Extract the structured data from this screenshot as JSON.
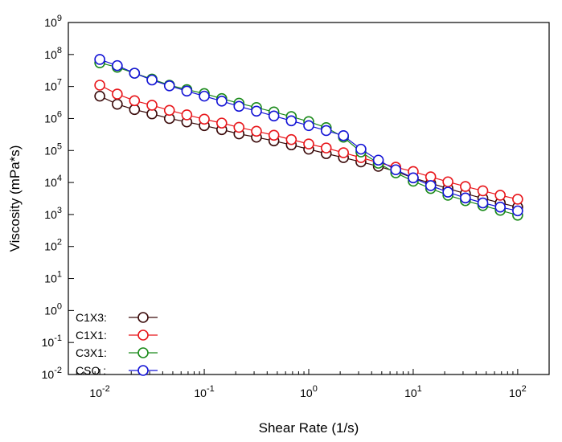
{
  "chart_data": {
    "type": "line",
    "xscale": "log",
    "yscale": "log",
    "xlabel": "Shear Rate (1/s)",
    "ylabel": "Viscosity (mPa*s)",
    "xlim": [
      0.005,
      200
    ],
    "ylim": [
      0.01,
      1000000000
    ],
    "x_ticks": [
      {
        "value": 0.01,
        "base": "10",
        "exp": "-2"
      },
      {
        "value": 0.1,
        "base": "10",
        "exp": "-1"
      },
      {
        "value": 1,
        "base": "10",
        "exp": "0"
      },
      {
        "value": 10,
        "base": "10",
        "exp": "1"
      },
      {
        "value": 100,
        "base": "10",
        "exp": "2"
      }
    ],
    "y_ticks": [
      {
        "value": 0.01,
        "base": "10",
        "exp": "-2"
      },
      {
        "value": 0.1,
        "base": "10",
        "exp": "-1"
      },
      {
        "value": 1,
        "base": "10",
        "exp": "0"
      },
      {
        "value": 10,
        "base": "10",
        "exp": "1"
      },
      {
        "value": 100,
        "base": "10",
        "exp": "2"
      },
      {
        "value": 1000,
        "base": "10",
        "exp": "3"
      },
      {
        "value": 10000,
        "base": "10",
        "exp": "4"
      },
      {
        "value": 100000,
        "base": "10",
        "exp": "5"
      },
      {
        "value": 1000000,
        "base": "10",
        "exp": "6"
      },
      {
        "value": 10000000,
        "base": "10",
        "exp": "7"
      },
      {
        "value": 100000000,
        "base": "10",
        "exp": "8"
      },
      {
        "value": 1000000000,
        "base": "10",
        "exp": "9"
      }
    ],
    "legend_position": "bottom-left",
    "x": [
      0.01,
      0.0147,
      0.0215,
      0.0316,
      0.0464,
      0.0681,
      0.1,
      0.147,
      0.215,
      0.316,
      0.464,
      0.681,
      1,
      1.47,
      2.15,
      3.16,
      4.64,
      6.81,
      10,
      14.7,
      21.5,
      31.6,
      46.4,
      68.1,
      100
    ],
    "series": [
      {
        "name": "C1X3:",
        "color": "#3a0a0a",
        "values": [
          5000000,
          2800000,
          1900000,
          1400000,
          1000000,
          780000,
          600000,
          450000,
          330000,
          260000,
          200000,
          150000,
          110000,
          80000,
          60000,
          44000,
          32000,
          22000,
          14000,
          9500,
          6500,
          4500,
          3200,
          2300,
          1700
        ]
      },
      {
        "name": "C1X1:",
        "color": "#e8161b",
        "values": [
          11000000,
          5800000,
          3600000,
          2600000,
          1800000,
          1300000,
          950000,
          720000,
          530000,
          400000,
          300000,
          220000,
          160000,
          120000,
          85000,
          60000,
          42000,
          30000,
          22000,
          15000,
          10500,
          7500,
          5500,
          4000,
          3000
        ]
      },
      {
        "name": "C3X1:",
        "color": "#1a8a1a",
        "values": [
          55000000,
          40000000,
          26000000,
          17000000,
          11000000,
          8000000,
          6000000,
          4200000,
          3000000,
          2200000,
          1600000,
          1150000,
          800000,
          520000,
          260000,
          90000,
          40000,
          20000,
          11000,
          6500,
          4000,
          2700,
          1900,
          1350,
          950
        ]
      },
      {
        "name": "CSO :",
        "color": "#1414d6",
        "values": [
          70000000,
          45000000,
          26000000,
          16000000,
          10500000,
          7200000,
          5000000,
          3500000,
          2400000,
          1700000,
          1200000,
          850000,
          600000,
          420000,
          290000,
          110000,
          50000,
          25000,
          14000,
          8000,
          5000,
          3300,
          2300,
          1700,
          1300
        ]
      }
    ]
  }
}
